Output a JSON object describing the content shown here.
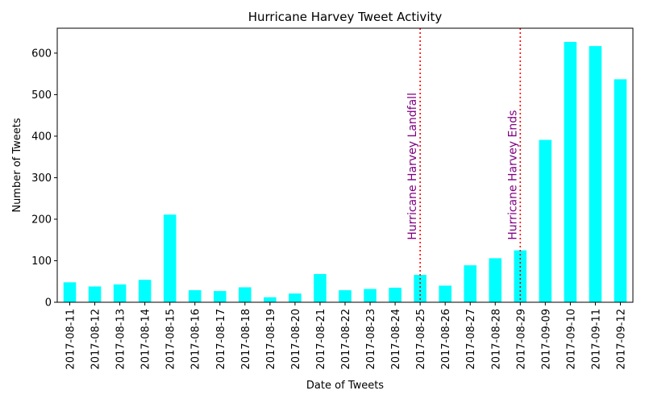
{
  "chart_data": {
    "type": "bar",
    "title": "Hurricane Harvey Tweet Activity",
    "xlabel": "Date of Tweets",
    "ylabel": "Number of Tweets",
    "categories": [
      "2017-08-11",
      "2017-08-12",
      "2017-08-13",
      "2017-08-14",
      "2017-08-15",
      "2017-08-16",
      "2017-08-17",
      "2017-08-18",
      "2017-08-19",
      "2017-08-20",
      "2017-08-21",
      "2017-08-22",
      "2017-08-23",
      "2017-08-24",
      "2017-08-25",
      "2017-08-26",
      "2017-08-27",
      "2017-08-28",
      "2017-08-29",
      "2017-09-09",
      "2017-09-10",
      "2017-09-11",
      "2017-09-12"
    ],
    "values": [
      48,
      38,
      43,
      54,
      211,
      29,
      27,
      36,
      12,
      21,
      68,
      29,
      32,
      35,
      66,
      40,
      89,
      106,
      125,
      391,
      627,
      617,
      537
    ],
    "ylim": [
      0,
      660
    ],
    "yticks": [
      0,
      100,
      200,
      300,
      400,
      500,
      600
    ],
    "bar_color": "#00ffff",
    "grid": false,
    "annotations": [
      {
        "category": "2017-08-25",
        "label": "Hurricane Harvey Landfall",
        "line_color": "#ff0000",
        "text_color": "#800080",
        "line_style": "dotted"
      },
      {
        "category": "2017-08-29",
        "label": "Hurricane Harvey Ends",
        "line_color": "#ff0000",
        "text_color": "#800080",
        "line_style": "dotted"
      }
    ]
  }
}
